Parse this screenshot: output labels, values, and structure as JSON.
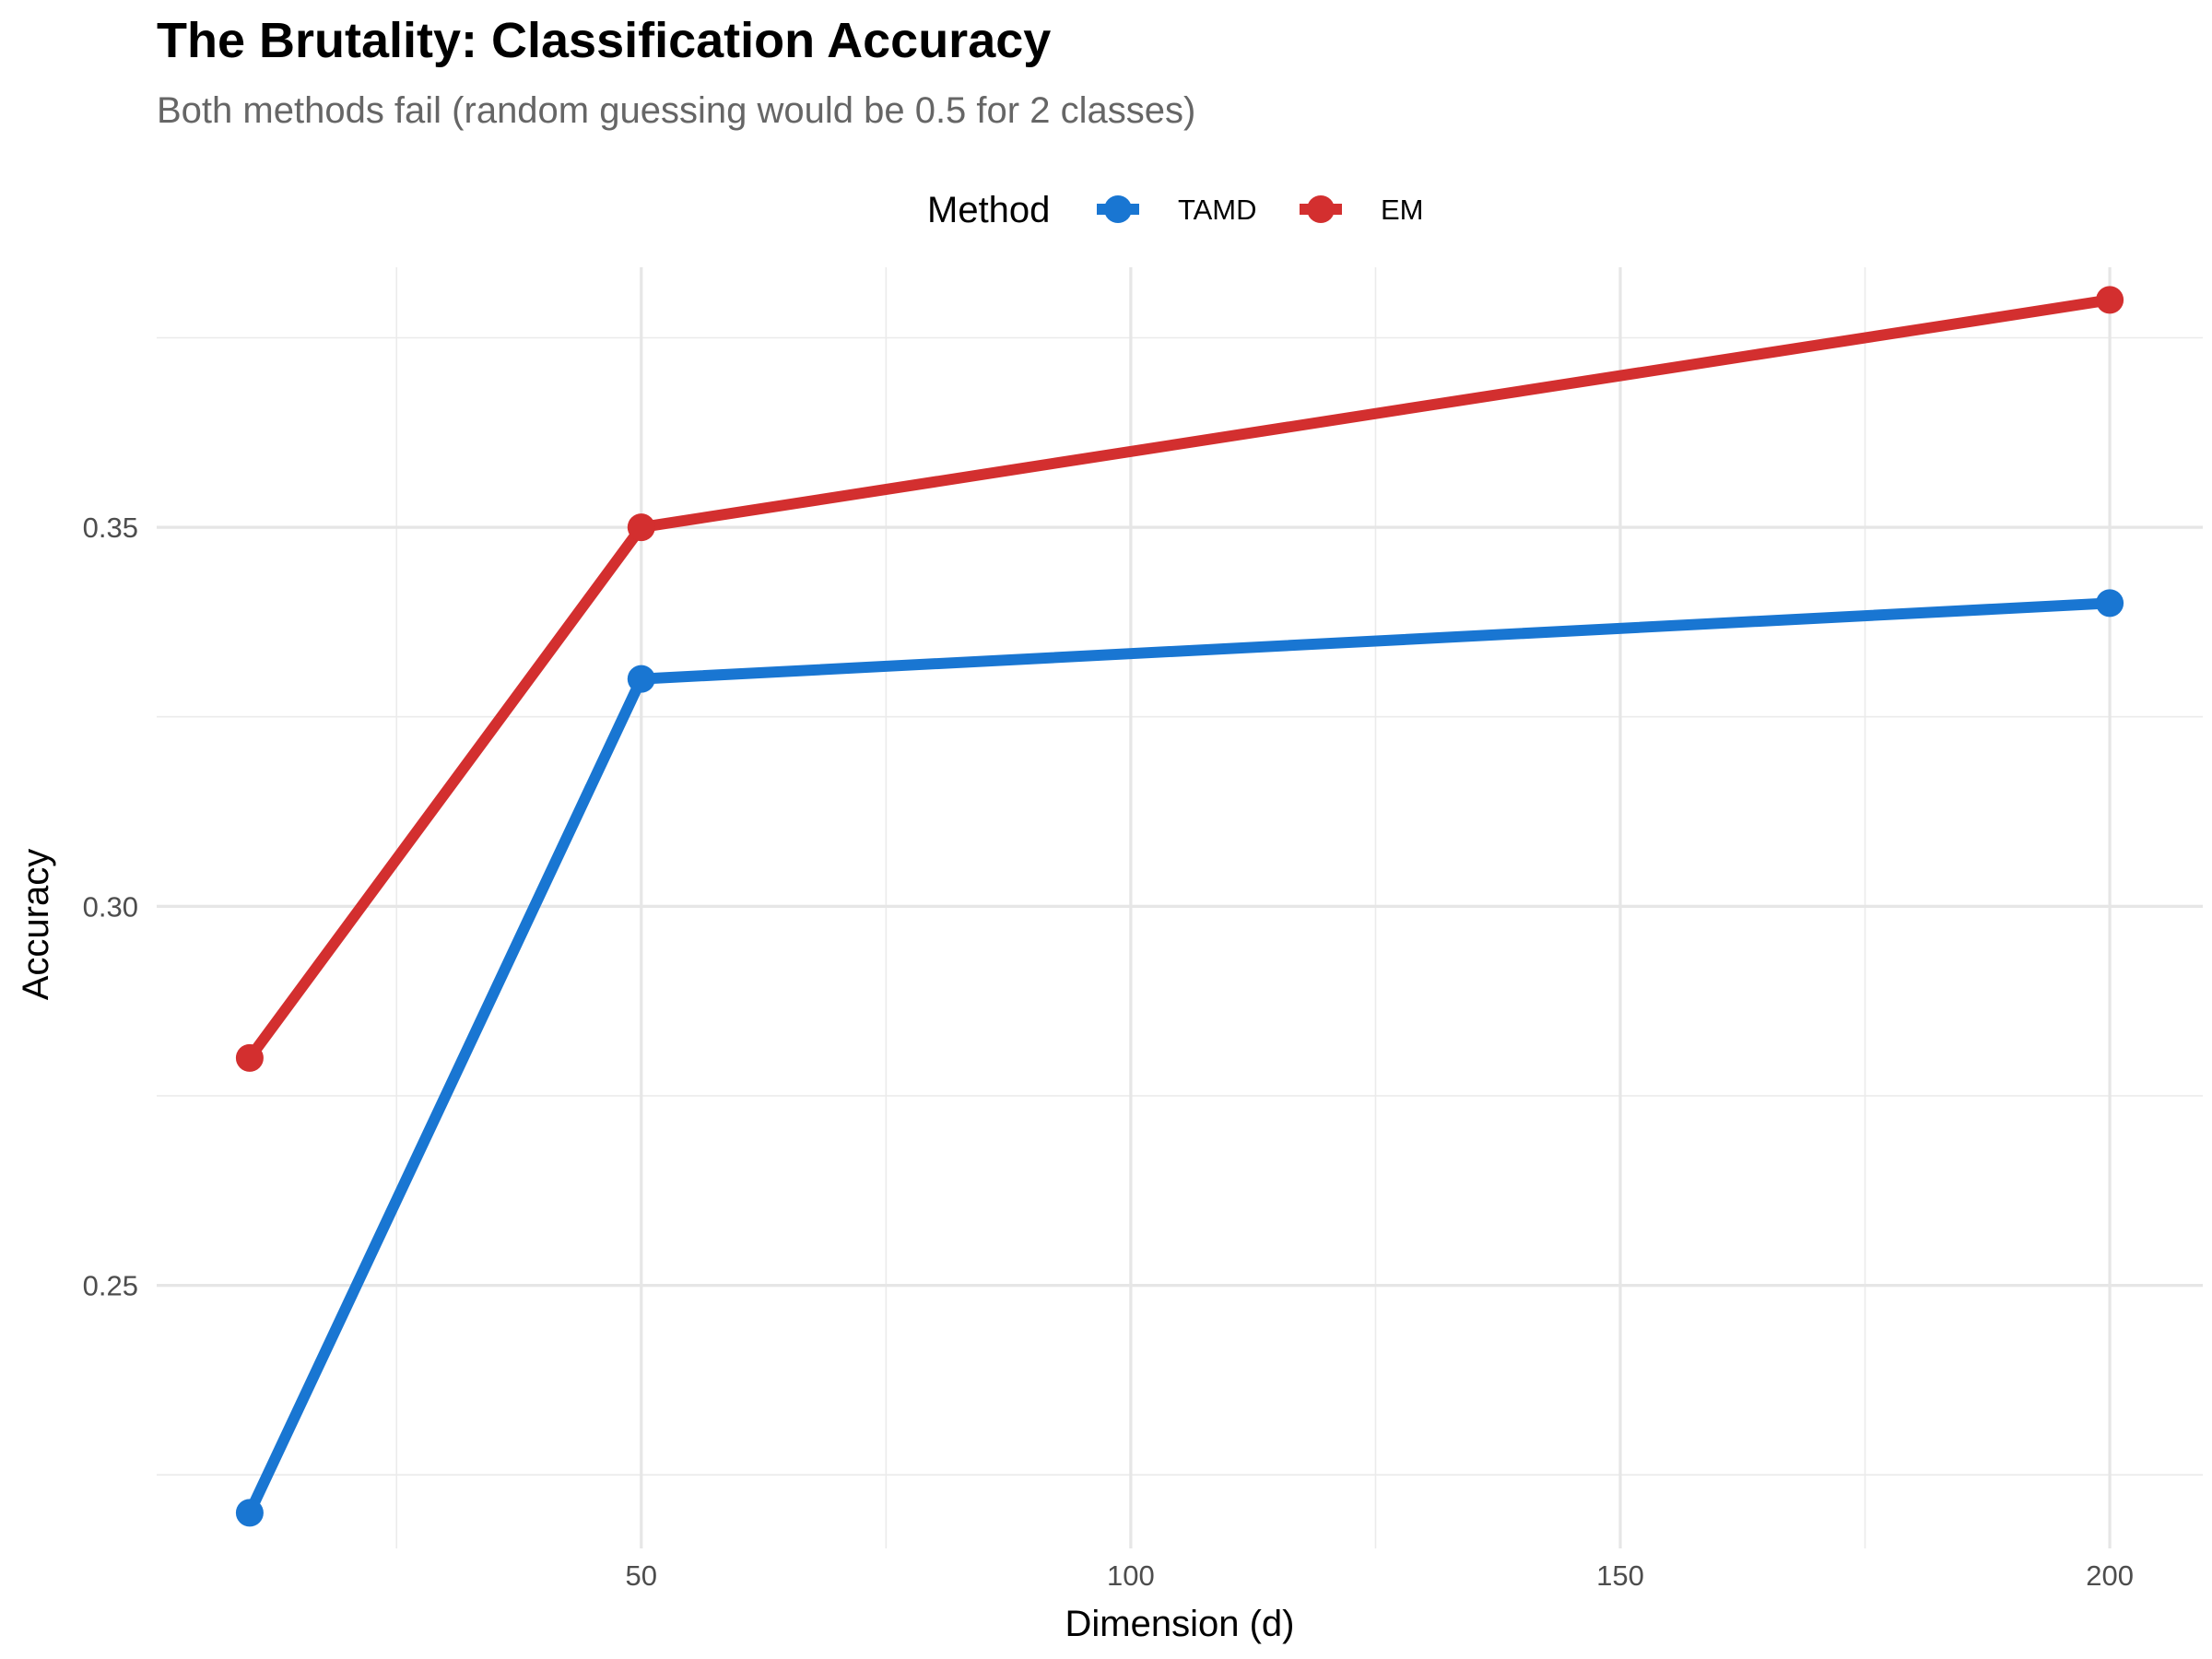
{
  "chart_data": {
    "type": "line",
    "title": "The Brutality: Classification Accuracy",
    "subtitle": "Both methods fail (random guessing would be 0.5 for 2 classes)",
    "xlabel": "Dimension (d)",
    "ylabel": "Accuracy",
    "legend_title": "Method",
    "legend_position": "top",
    "grid": true,
    "x": [
      10,
      50,
      200
    ],
    "xlim": [
      0.5,
      209.5
    ],
    "ylim": [
      0.2153,
      0.3843
    ],
    "x_ticks": [
      50,
      100,
      150,
      200
    ],
    "x_tick_labels": [
      "50",
      "100",
      "150",
      "200"
    ],
    "y_ticks": [
      0.25,
      0.3,
      0.35
    ],
    "y_tick_labels": [
      "0.25",
      "0.30",
      "0.35"
    ],
    "series": [
      {
        "name": "TAMD",
        "color": "#1976d2",
        "values": [
          0.22,
          0.33,
          0.34
        ]
      },
      {
        "name": "EM",
        "color": "#d32f2f",
        "values": [
          0.28,
          0.35,
          0.38
        ]
      }
    ]
  }
}
